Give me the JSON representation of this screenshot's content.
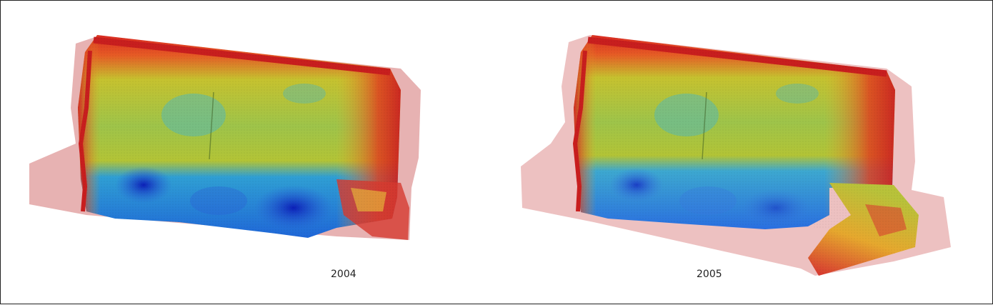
{
  "figure": {
    "panels": [
      {
        "label": "2004"
      },
      {
        "label": "2005"
      }
    ]
  }
}
